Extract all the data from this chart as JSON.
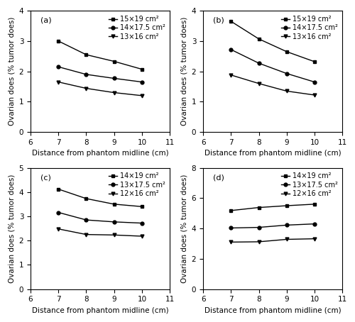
{
  "x": [
    7,
    8,
    9,
    10
  ],
  "panels": [
    {
      "label": "(a)",
      "ylabel": "Ovarian does (% tumor does)",
      "xlabel": "Distance from phantom midline (cm)",
      "ylim": [
        0,
        4
      ],
      "yticks": [
        0,
        1,
        2,
        3,
        4
      ],
      "legend_labels": [
        "15×19 cm²",
        "14×17.5 cm²",
        "13×16 cm²"
      ],
      "series": [
        [
          3.0,
          2.55,
          2.33,
          2.07
        ],
        [
          2.15,
          1.9,
          1.77,
          1.65
        ],
        [
          1.65,
          1.44,
          1.3,
          1.2
        ]
      ]
    },
    {
      "label": "(b)",
      "ylabel": "Ovarian does (% tumor does)",
      "xlabel": "Distance from phantom midline (cm)",
      "ylim": [
        0,
        4
      ],
      "yticks": [
        0,
        1,
        2,
        3,
        4
      ],
      "legend_labels": [
        "15×19 cm²",
        "14×17.5 cm²",
        "13×16 cm²"
      ],
      "series": [
        [
          3.65,
          3.07,
          2.65,
          2.32
        ],
        [
          2.72,
          2.27,
          1.93,
          1.65
        ],
        [
          1.88,
          1.6,
          1.35,
          1.22
        ]
      ]
    },
    {
      "label": "(c)",
      "ylabel": "Ovarian does (% tumor does)",
      "xlabel": "Distance from phantom midline (cm)",
      "ylim": [
        0,
        5
      ],
      "yticks": [
        0,
        1,
        2,
        3,
        4,
        5
      ],
      "legend_labels": [
        "14×19 cm²",
        "13×17.5 cm²",
        "12×16 cm²"
      ],
      "series": [
        [
          4.12,
          3.73,
          3.5,
          3.4
        ],
        [
          3.16,
          2.85,
          2.77,
          2.72
        ],
        [
          2.48,
          2.25,
          2.23,
          2.18
        ]
      ]
    },
    {
      "label": "(d)",
      "ylabel": "Ovarian does (% tumor does)",
      "xlabel": "Distance from phantom midline (cm)",
      "ylim": [
        0,
        8
      ],
      "yticks": [
        0,
        2,
        4,
        6,
        8
      ],
      "legend_labels": [
        "14×19 cm²",
        "13×17.5 cm²",
        "12×16 cm²"
      ],
      "series": [
        [
          5.18,
          5.38,
          5.5,
          5.6
        ],
        [
          4.03,
          4.07,
          4.22,
          4.3
        ],
        [
          3.1,
          3.12,
          3.28,
          3.32
        ]
      ]
    }
  ],
  "marker_styles": [
    "s",
    "o",
    "v"
  ],
  "marker_size": 3.5,
  "line_color": "black",
  "font_size": 7.5,
  "legend_font_size": 7,
  "linewidth": 1.0
}
